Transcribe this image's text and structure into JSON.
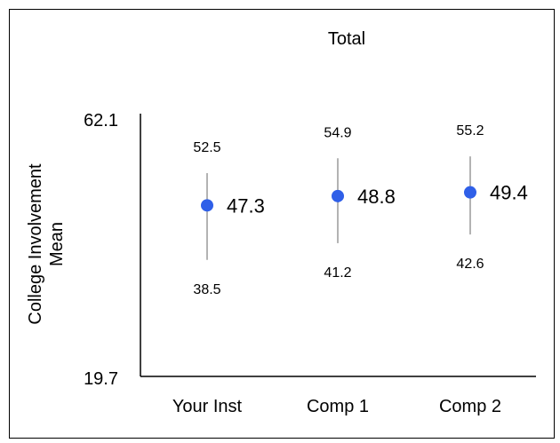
{
  "chart_data": {
    "type": "scatter",
    "title": "Total",
    "ylabel_lines": [
      "College Involvement",
      "Mean"
    ],
    "xlabel": "",
    "ylim": [
      19.7,
      62.1
    ],
    "y_tick_labels": [
      "62.1",
      "19.7"
    ],
    "categories": [
      "Your Inst",
      "Comp 1",
      "Comp 2"
    ],
    "points": [
      {
        "category": "Your Inst",
        "mean": 47.3,
        "upper": 52.5,
        "lower": 38.5,
        "mean_label": "47.3",
        "upper_label": "52.5",
        "lower_label": "38.5"
      },
      {
        "category": "Comp 1",
        "mean": 48.8,
        "upper": 54.9,
        "lower": 41.2,
        "mean_label": "48.8",
        "upper_label": "54.9",
        "lower_label": "41.2"
      },
      {
        "category": "Comp 2",
        "mean": 49.4,
        "upper": 55.2,
        "lower": 42.6,
        "mean_label": "49.4",
        "upper_label": "55.2",
        "lower_label": "42.6"
      }
    ],
    "marker_color": "#2F5FE8",
    "errorbar_color": "#808080",
    "axis_color": "#000000",
    "grid": false,
    "legend": "none"
  }
}
